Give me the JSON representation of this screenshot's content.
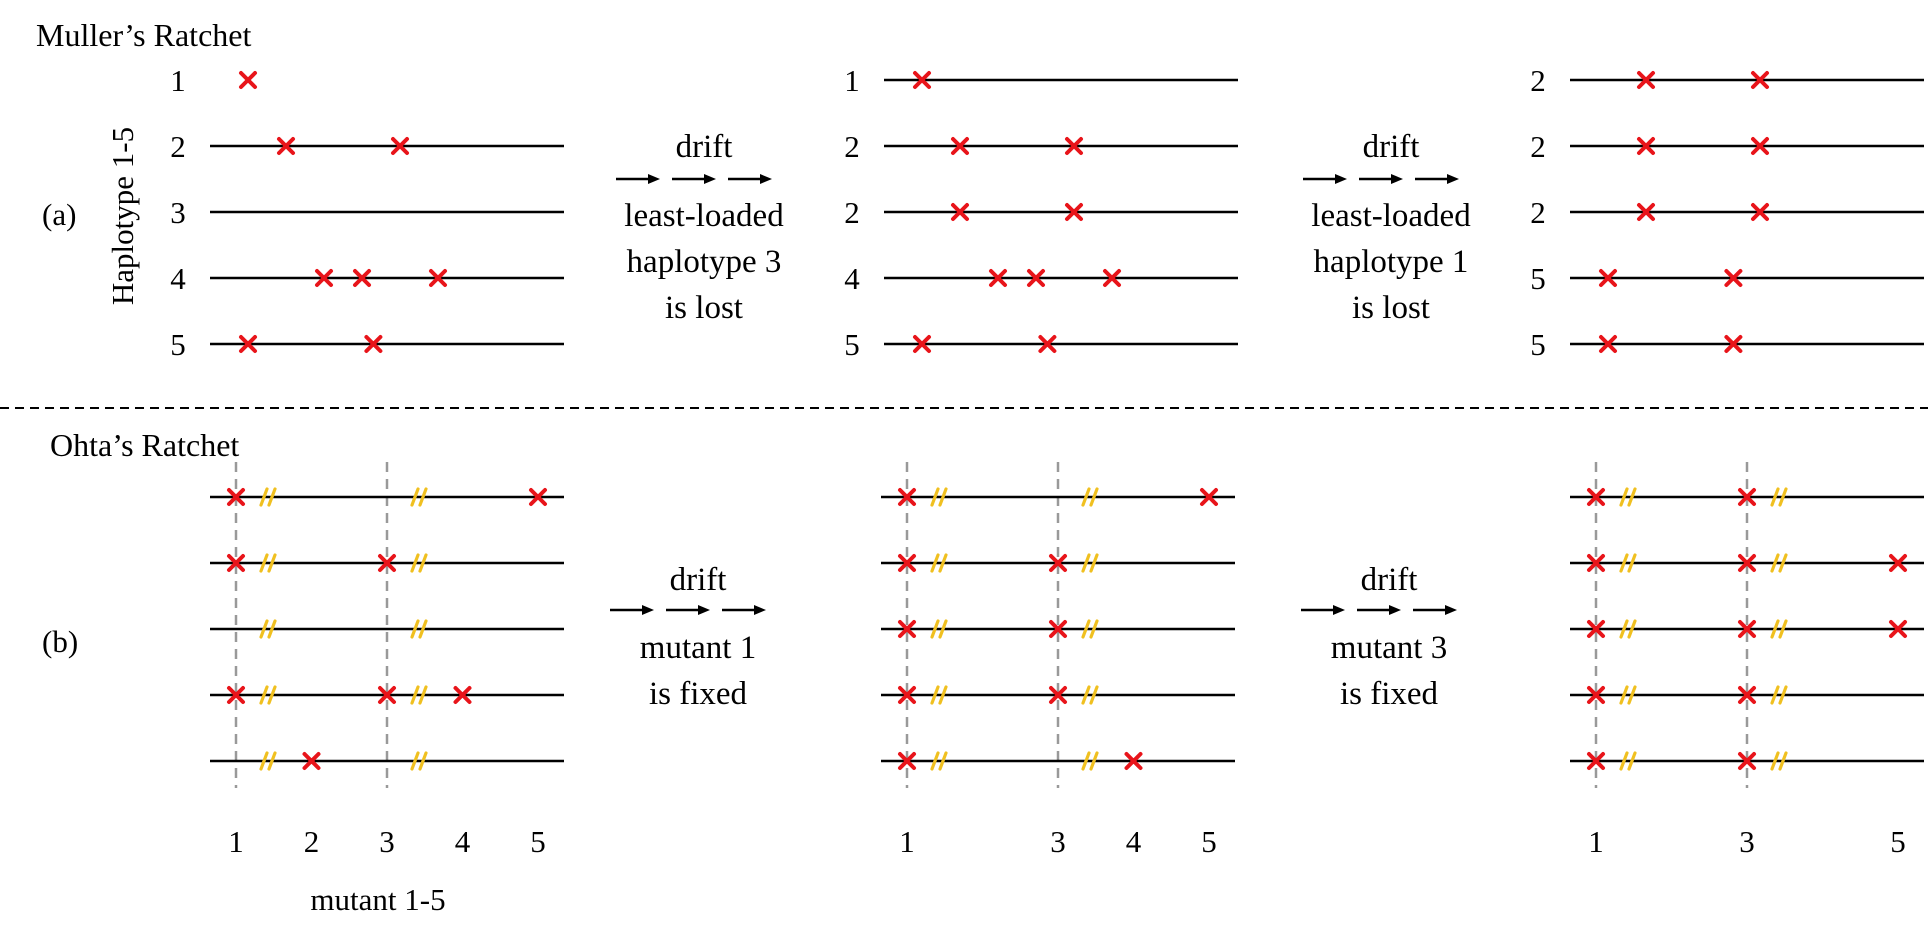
{
  "panel_a": {
    "title": "Muller’s Ratchet",
    "label": "(a)",
    "y_axis_label": "Haplotype 1-5",
    "stages": [
      {
        "rows": [
          {
            "id": "1",
            "line": false,
            "mutations": [
              1
            ]
          },
          {
            "id": "2",
            "line": true,
            "mutations": [
              2,
              5
            ]
          },
          {
            "id": "3",
            "line": true,
            "mutations": []
          },
          {
            "id": "4",
            "line": true,
            "mutations": [
              3,
              4,
              6
            ]
          },
          {
            "id": "5",
            "line": true,
            "mutations": [
              1,
              4.3
            ]
          }
        ]
      },
      {
        "rows": [
          {
            "id": "1",
            "line": true,
            "mutations": [
              1
            ]
          },
          {
            "id": "2",
            "line": true,
            "mutations": [
              2,
              5
            ]
          },
          {
            "id": "2",
            "line": true,
            "mutations": [
              2,
              5
            ]
          },
          {
            "id": "4",
            "line": true,
            "mutations": [
              3,
              4,
              6
            ]
          },
          {
            "id": "5",
            "line": true,
            "mutations": [
              1,
              4.3
            ]
          }
        ]
      },
      {
        "rows": [
          {
            "id": "2",
            "line": true,
            "mutations": [
              2,
              5
            ]
          },
          {
            "id": "2",
            "line": true,
            "mutations": [
              2,
              5
            ]
          },
          {
            "id": "2",
            "line": true,
            "mutations": [
              2,
              5
            ]
          },
          {
            "id": "5",
            "line": true,
            "mutations": [
              1,
              4.3
            ]
          },
          {
            "id": "5",
            "line": true,
            "mutations": [
              1,
              4.3
            ]
          }
        ]
      }
    ],
    "transitions": [
      {
        "top": "drift",
        "lines": [
          "least-loaded",
          "haplotype 3",
          "is lost"
        ]
      },
      {
        "top": "drift",
        "lines": [
          "least-loaded",
          "haplotype 1",
          "is lost"
        ]
      }
    ]
  },
  "panel_b": {
    "title": "Ohta’s Ratchet",
    "label": "(b)",
    "x_axis_label": "mutant 1-5",
    "stages": [
      {
        "fixed": [
          1,
          3
        ],
        "ticks": [
          "1",
          "2",
          "3",
          "4",
          "5"
        ],
        "rows": [
          {
            "mutations": [
              1,
              5
            ],
            "neutral": [
              1,
              3
            ]
          },
          {
            "mutations": [
              1,
              3
            ],
            "neutral": [
              1,
              3
            ]
          },
          {
            "mutations": [],
            "neutral": [
              1,
              3
            ]
          },
          {
            "mutations": [
              1,
              3,
              4
            ],
            "neutral": [
              1,
              3
            ]
          },
          {
            "mutations": [
              2
            ],
            "neutral": [
              1,
              3
            ]
          }
        ]
      },
      {
        "fixed": [
          1,
          3
        ],
        "ticks": [
          "1",
          "",
          "3",
          "4",
          "5"
        ],
        "rows": [
          {
            "mutations": [
              1,
              5
            ],
            "neutral": [
              1,
              3
            ]
          },
          {
            "mutations": [
              1,
              3
            ],
            "neutral": [
              1,
              3
            ]
          },
          {
            "mutations": [
              1,
              3
            ],
            "neutral": [
              1,
              3
            ]
          },
          {
            "mutations": [
              1,
              3
            ],
            "neutral": [
              1,
              3
            ]
          },
          {
            "mutations": [
              1,
              4
            ],
            "neutral": [
              1,
              3
            ]
          }
        ]
      },
      {
        "fixed": [
          1,
          3
        ],
        "ticks": [
          "1",
          "",
          "3",
          "",
          "5"
        ],
        "rows": [
          {
            "mutations": [
              1,
              3
            ],
            "neutral": [
              1,
              3
            ]
          },
          {
            "mutations": [
              1,
              3,
              5
            ],
            "neutral": [
              1,
              3
            ]
          },
          {
            "mutations": [
              1,
              3,
              5
            ],
            "neutral": [
              1,
              3
            ]
          },
          {
            "mutations": [
              1,
              3
            ],
            "neutral": [
              1,
              3
            ]
          },
          {
            "mutations": [
              1,
              3
            ],
            "neutral": [
              1,
              3
            ]
          }
        ]
      }
    ],
    "transitions": [
      {
        "top": "drift",
        "lines": [
          "mutant 1",
          "is fixed"
        ]
      },
      {
        "top": "drift",
        "lines": [
          "mutant 3",
          "is fixed"
        ]
      }
    ]
  },
  "colors": {
    "deleterious": "#e8141a",
    "neutral": "#f0c020",
    "fixed_guide": "#999999",
    "line": "#000000"
  }
}
